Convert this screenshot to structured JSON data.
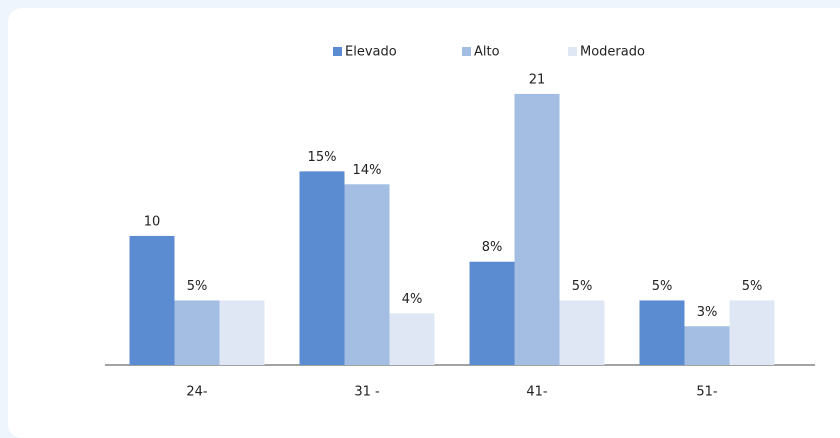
{
  "chart_data": {
    "type": "bar",
    "categories": [
      "24-",
      "31 -",
      "41-",
      "51-"
    ],
    "series": [
      {
        "name": "Elevado",
        "color": "#5b8bd0",
        "values": [
          10,
          15,
          8,
          5
        ],
        "value_labels": [
          "10",
          "15%",
          "8%",
          "5%"
        ]
      },
      {
        "name": "Alto",
        "color": "#a3bde3",
        "values": [
          5,
          14,
          21,
          3
        ],
        "value_labels": [
          "5%",
          "14%",
          "21",
          "3%"
        ]
      },
      {
        "name": "Moderado",
        "color": "#dfe7f5",
        "values": [
          5,
          4,
          5,
          5
        ],
        "value_labels": [
          null,
          "4%",
          "5%",
          "5%"
        ]
      }
    ],
    "ylim": [
      0,
      22
    ],
    "legend": "top"
  }
}
